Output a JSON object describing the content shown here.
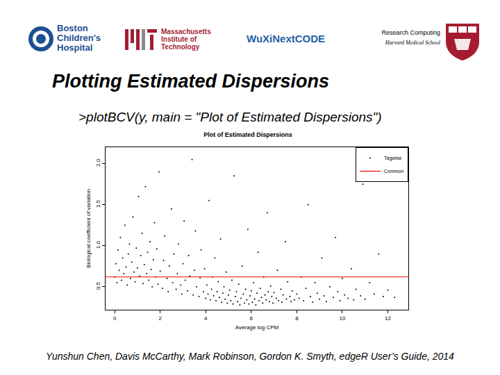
{
  "header": {
    "logos": [
      {
        "lines": [
          "Boston",
          "Children's",
          "Hospital"
        ]
      },
      {
        "lines": [
          "Massachusetts",
          "Institute of",
          "Technology"
        ]
      },
      {
        "lines": [
          "WuXiNextCODE"
        ]
      }
    ],
    "department": "Research Computing",
    "school": "Harvard Medical School"
  },
  "title": "Plotting Estimated Dispersions",
  "code": ">plotBCV(y, main = \"Plot of Estimated Dispersions\")",
  "citation": "Yunshun Chen, Davis McCarthy, Mark Robinson, Gordon K. Smyth, edgeR User’s Guide, 2014",
  "chart_data": {
    "type": "scatter",
    "title": "Plot of Estimated Dispersions",
    "x_label": "Average log CPM",
    "y_label": "Biological coefficient of variation",
    "xlim": [
      -0.4,
      12.9
    ],
    "xticks": [
      0,
      2,
      4,
      6,
      8,
      10,
      12
    ],
    "ylim": [
      0.22,
      2.2
    ],
    "yticks": [
      0.5,
      {
        "value": 1.0,
        "label": "1.0"
      },
      1.5,
      {
        "value": 2.0,
        "label": "2.0"
      }
    ],
    "grid": false,
    "legend": "top-right",
    "series": [
      {
        "name": "Tagwise",
        "type": "scatter",
        "color": "#000000",
        "marker": "dot",
        "x": [
          0.0,
          0.05,
          0.1,
          0.15,
          0.2,
          0.25,
          0.3,
          0.35,
          0.4,
          0.45,
          0.5,
          0.55,
          0.6,
          0.65,
          0.7,
          0.75,
          0.8,
          0.85,
          0.9,
          0.95,
          1.0,
          1.05,
          1.1,
          1.15,
          1.2,
          1.25,
          1.3,
          1.35,
          1.4,
          1.45,
          1.5,
          1.55,
          1.6,
          1.65,
          1.7,
          1.75,
          1.8,
          1.85,
          1.9,
          1.95,
          2.0,
          2.1,
          2.15,
          2.2,
          2.3,
          2.35,
          2.4,
          2.5,
          2.55,
          2.6,
          2.7,
          2.75,
          2.8,
          2.9,
          2.95,
          3.0,
          3.05,
          3.1,
          3.2,
          3.25,
          3.3,
          3.4,
          3.45,
          3.5,
          3.55,
          3.6,
          3.7,
          3.75,
          3.8,
          3.9,
          3.95,
          4.0,
          4.05,
          4.1,
          4.15,
          4.2,
          4.25,
          4.3,
          4.35,
          4.4,
          4.45,
          4.5,
          4.55,
          4.6,
          4.65,
          4.7,
          4.75,
          4.8,
          4.85,
          4.9,
          4.95,
          5.0,
          5.05,
          5.1,
          5.15,
          5.2,
          5.25,
          5.3,
          5.35,
          5.4,
          5.45,
          5.5,
          5.55,
          5.6,
          5.65,
          5.7,
          5.75,
          5.8,
          5.85,
          5.9,
          5.95,
          6.0,
          6.05,
          6.1,
          6.15,
          6.2,
          6.25,
          6.3,
          6.35,
          6.4,
          6.45,
          6.5,
          6.55,
          6.6,
          6.65,
          6.7,
          6.75,
          6.8,
          6.85,
          6.9,
          6.95,
          7.0,
          7.1,
          7.15,
          7.2,
          7.3,
          7.35,
          7.4,
          7.5,
          7.55,
          7.6,
          7.7,
          7.75,
          7.8,
          7.9,
          8.0,
          8.1,
          8.2,
          8.3,
          8.4,
          8.5,
          8.6,
          8.7,
          8.8,
          8.9,
          9.0,
          9.1,
          9.2,
          9.3,
          9.45,
          9.6,
          9.7,
          9.8,
          9.9,
          10.0,
          10.1,
          10.25,
          10.4,
          10.5,
          10.6,
          10.8,
          10.9,
          11.0,
          11.2,
          11.4,
          11.6,
          11.8,
          12.0,
          12.3
        ],
        "values": [
          0.62,
          0.78,
          0.55,
          0.95,
          0.7,
          1.1,
          0.58,
          0.85,
          0.66,
          1.25,
          0.74,
          0.52,
          0.9,
          1.02,
          0.6,
          0.8,
          1.35,
          0.68,
          0.56,
          0.97,
          0.73,
          1.6,
          0.63,
          0.88,
          1.15,
          0.54,
          0.77,
          1.72,
          0.66,
          0.92,
          0.58,
          1.05,
          0.71,
          0.5,
          0.83,
          1.28,
          0.62,
          0.96,
          0.53,
          1.9,
          0.69,
          0.48,
          0.82,
          1.12,
          0.6,
          0.44,
          0.75,
          1.45,
          0.55,
          0.9,
          0.47,
          0.66,
          1.02,
          0.52,
          0.41,
          0.78,
          1.3,
          0.58,
          0.45,
          0.88,
          0.63,
          2.05,
          0.4,
          0.7,
          1.18,
          0.5,
          0.38,
          0.61,
          0.95,
          0.44,
          0.72,
          0.36,
          0.52,
          0.41,
          1.55,
          0.34,
          0.47,
          0.62,
          0.39,
          0.85,
          0.33,
          0.44,
          0.56,
          0.37,
          1.08,
          0.31,
          0.42,
          0.5,
          0.35,
          0.68,
          0.3,
          0.4,
          0.46,
          0.33,
          0.58,
          0.29,
          1.85,
          0.38,
          0.44,
          0.32,
          0.53,
          0.28,
          0.36,
          0.75,
          0.41,
          0.3,
          0.47,
          0.34,
          1.2,
          0.29,
          0.39,
          0.45,
          0.31,
          0.55,
          0.35,
          0.28,
          0.42,
          0.92,
          0.33,
          0.48,
          0.37,
          0.3,
          0.62,
          0.4,
          0.34,
          1.4,
          0.44,
          0.32,
          0.51,
          0.38,
          0.3,
          0.43,
          0.36,
          0.7,
          0.33,
          0.47,
          0.31,
          0.4,
          1.05,
          0.35,
          0.56,
          0.38,
          0.32,
          0.45,
          0.34,
          0.41,
          0.36,
          0.62,
          0.33,
          0.48,
          1.5,
          0.38,
          0.31,
          0.55,
          0.42,
          0.35,
          0.85,
          0.39,
          0.32,
          0.5,
          0.37,
          1.1,
          0.44,
          0.33,
          0.6,
          0.4,
          0.36,
          0.72,
          0.34,
          0.47,
          0.39,
          1.75,
          0.35,
          0.55,
          0.41,
          0.9,
          0.38,
          0.46,
          0.37
        ]
      },
      {
        "name": "Common",
        "type": "line",
        "color": "#ff0000",
        "line_style": "solid",
        "x": [
          -0.4,
          12.9
        ],
        "values": [
          0.62,
          0.62
        ]
      }
    ]
  }
}
